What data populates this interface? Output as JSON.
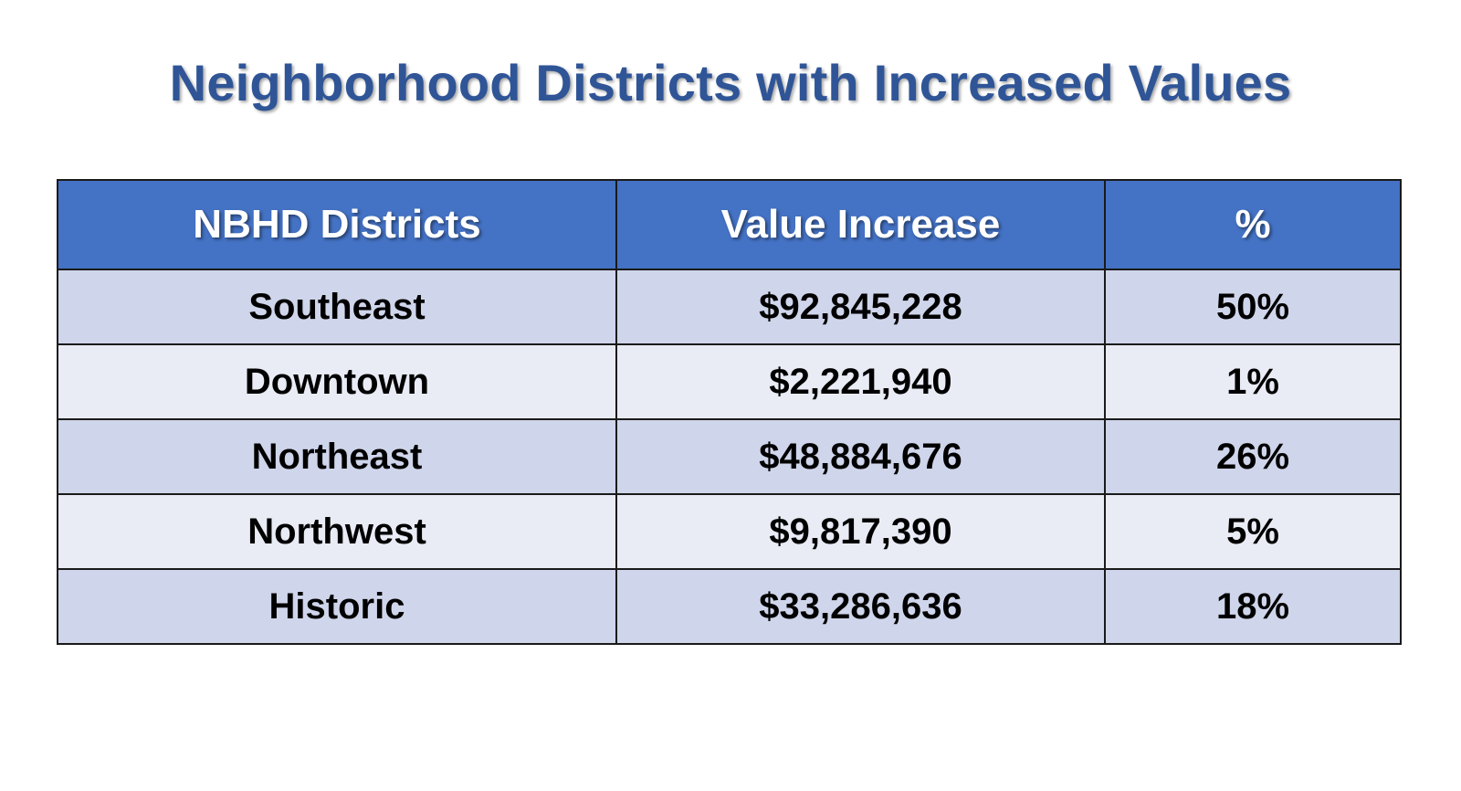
{
  "title": "Neighborhood Districts with Increased Values",
  "table": {
    "headers": [
      "NBHD Districts",
      "Value Increase",
      "%"
    ],
    "rows": [
      [
        "Southeast",
        "$92,845,228",
        "50%"
      ],
      [
        "Downtown",
        "$2,221,940",
        "1%"
      ],
      [
        "Northeast",
        "$48,884,676",
        "26%"
      ],
      [
        "Northwest",
        "$9,817,390",
        "5%"
      ],
      [
        "Historic",
        "$33,286,636",
        "18%"
      ]
    ]
  },
  "colors": {
    "title": "#2f5597",
    "header_bg": "#4472c4",
    "row_odd_bg": "#cfd5ea",
    "row_even_bg": "#e9ebf5",
    "border": "#1a1a1a"
  }
}
